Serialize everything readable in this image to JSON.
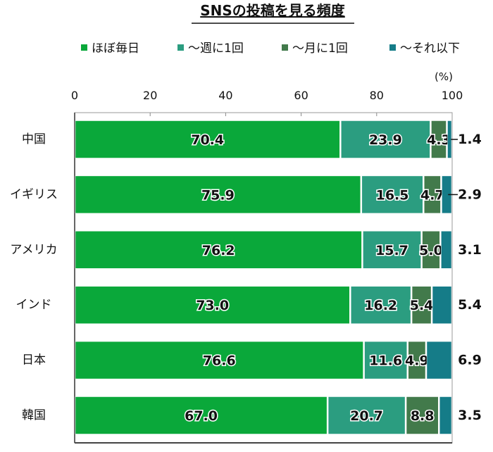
{
  "chart_data": {
    "type": "bar",
    "orientation": "horizontal-stacked",
    "title": "SNSの投稿を見る頻度",
    "unit_label": "(%)",
    "categories": [
      "中国",
      "イギリス",
      "アメリカ",
      "インド",
      "日本",
      "韓国"
    ],
    "series": [
      {
        "name": "ほぼ毎日",
        "color": "#0aa83a",
        "values": [
          70.4,
          75.9,
          76.2,
          73.0,
          76.6,
          67.0
        ]
      },
      {
        "name": "～週に1回",
        "color": "#2b9d80",
        "values": [
          23.9,
          16.5,
          15.7,
          16.2,
          11.6,
          20.7
        ]
      },
      {
        "name": "～月に1回",
        "color": "#427a4b",
        "values": [
          4.3,
          4.7,
          5.0,
          5.4,
          4.9,
          8.8
        ]
      },
      {
        "name": "～それ以下",
        "color": "#157c88",
        "values": [
          1.4,
          2.9,
          3.1,
          5.4,
          6.9,
          3.5
        ]
      }
    ],
    "xlim": [
      0,
      100
    ],
    "xticks": [
      "0",
      "20",
      "40",
      "60",
      "80",
      "100"
    ],
    "legend": "top",
    "grid": false
  }
}
